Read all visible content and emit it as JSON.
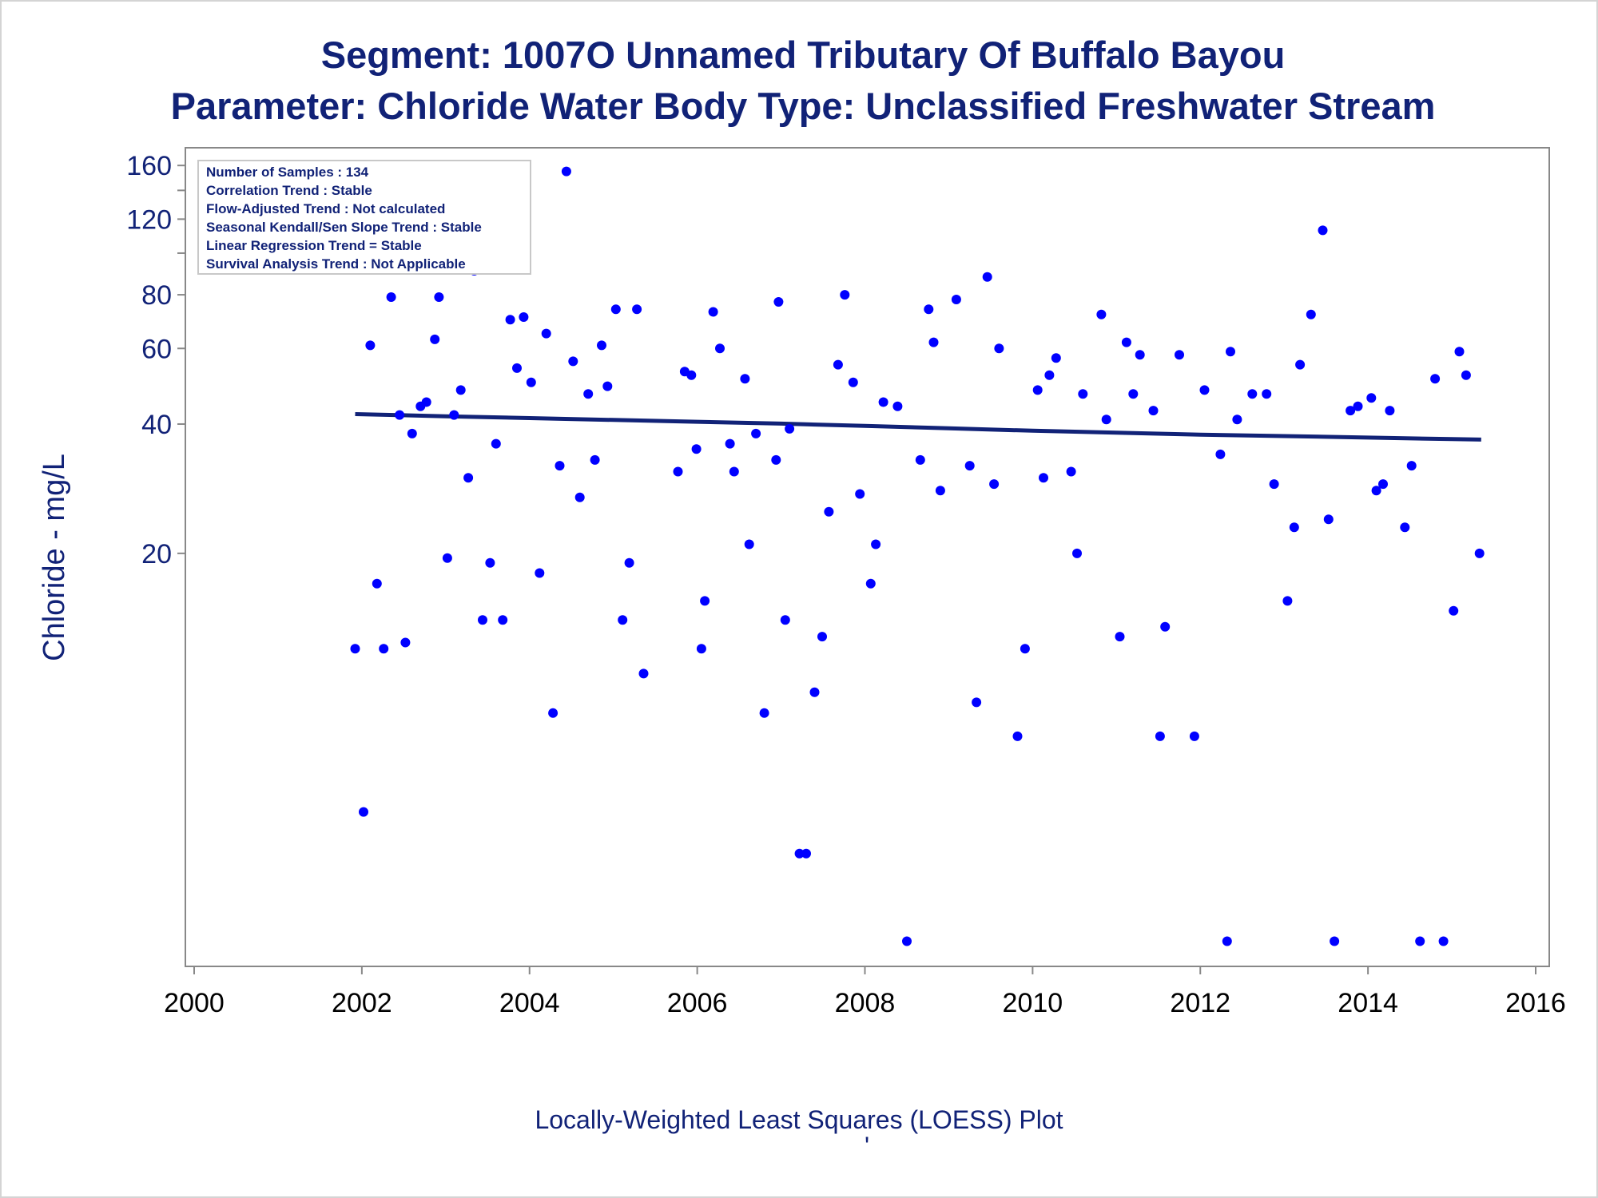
{
  "chart_data": {
    "type": "scatter",
    "title": "Segment: 1007O  Unnamed Tributary Of Buffalo Bayou",
    "subtitle": "Parameter: Chloride   Water Body Type: Unclassified Freshwater Stream",
    "ylabel": "Chloride - mg/L",
    "xlabel": "",
    "footnote": "Locally-Weighted Least Squares (LOESS) Plot",
    "footnote_mark": "'",
    "y_scale": "log",
    "xlim": [
      2000,
      2016
    ],
    "ylim": [
      2.3,
      165
    ],
    "x_ticks": [
      2000,
      2002,
      2004,
      2006,
      2008,
      2010,
      2012,
      2014,
      2016
    ],
    "y_ticks_labeled": [
      20,
      40,
      60,
      80,
      120,
      160
    ],
    "y_ticks_minor": [
      100,
      140
    ],
    "grid": false,
    "legend_box_position": "top-left",
    "stats": [
      "Number of Samples : 134",
      "Correlation Trend : Stable",
      "Flow-Adjusted Trend : Not calculated",
      "Seasonal Kendall/Sen Slope Trend : Stable",
      "Linear Regression Trend = Stable",
      "Survival Analysis Trend : Not Applicable"
    ],
    "colors": {
      "points": "#0000ff",
      "loess": "#112277",
      "text": "#112277",
      "axis": "#888888"
    },
    "loess_line": {
      "x": [
        2001.92,
        2003,
        2004,
        2005,
        2006,
        2007,
        2008,
        2009,
        2010,
        2011,
        2012,
        2013,
        2014,
        2015,
        2015.35
      ],
      "y": [
        42.2,
        41.7,
        41.3,
        40.9,
        40.5,
        40.1,
        39.6,
        39.1,
        38.6,
        38.2,
        37.8,
        37.5,
        37.2,
        36.9,
        36.8
      ]
    },
    "points": [
      {
        "x": 2001.92,
        "y": 12
      },
      {
        "x": 2002.02,
        "y": 5
      },
      {
        "x": 2002.1,
        "y": 61
      },
      {
        "x": 2002.18,
        "y": 17
      },
      {
        "x": 2002.26,
        "y": 12
      },
      {
        "x": 2002.35,
        "y": 79
      },
      {
        "x": 2002.45,
        "y": 42
      },
      {
        "x": 2002.52,
        "y": 12.4
      },
      {
        "x": 2002.6,
        "y": 38
      },
      {
        "x": 2002.7,
        "y": 44
      },
      {
        "x": 2002.77,
        "y": 45
      },
      {
        "x": 2002.87,
        "y": 63
      },
      {
        "x": 2002.92,
        "y": 79
      },
      {
        "x": 2003.02,
        "y": 19.5
      },
      {
        "x": 2003.1,
        "y": 42
      },
      {
        "x": 2003.18,
        "y": 48
      },
      {
        "x": 2003.27,
        "y": 30
      },
      {
        "x": 2003.34,
        "y": 91
      },
      {
        "x": 2003.44,
        "y": 14
      },
      {
        "x": 2003.53,
        "y": 19
      },
      {
        "x": 2003.6,
        "y": 36
      },
      {
        "x": 2003.68,
        "y": 14
      },
      {
        "x": 2003.77,
        "y": 70
      },
      {
        "x": 2003.85,
        "y": 54
      },
      {
        "x": 2003.93,
        "y": 71
      },
      {
        "x": 2004.02,
        "y": 50
      },
      {
        "x": 2004.12,
        "y": 18
      },
      {
        "x": 2004.2,
        "y": 65
      },
      {
        "x": 2004.28,
        "y": 8.5
      },
      {
        "x": 2004.36,
        "y": 32
      },
      {
        "x": 2004.44,
        "y": 155
      },
      {
        "x": 2004.52,
        "y": 56
      },
      {
        "x": 2004.6,
        "y": 27
      },
      {
        "x": 2004.7,
        "y": 47
      },
      {
        "x": 2004.78,
        "y": 33
      },
      {
        "x": 2004.86,
        "y": 61
      },
      {
        "x": 2004.93,
        "y": 49
      },
      {
        "x": 2005.03,
        "y": 74
      },
      {
        "x": 2005.11,
        "y": 14
      },
      {
        "x": 2005.19,
        "y": 19
      },
      {
        "x": 2005.28,
        "y": 74
      },
      {
        "x": 2005.36,
        "y": 10.5
      },
      {
        "x": 2005.77,
        "y": 31
      },
      {
        "x": 2005.85,
        "y": 53
      },
      {
        "x": 2005.93,
        "y": 52
      },
      {
        "x": 2005.99,
        "y": 35
      },
      {
        "x": 2006.05,
        "y": 12
      },
      {
        "x": 2006.09,
        "y": 15.5
      },
      {
        "x": 2006.19,
        "y": 73
      },
      {
        "x": 2006.27,
        "y": 60
      },
      {
        "x": 2006.39,
        "y": 36
      },
      {
        "x": 2006.44,
        "y": 31
      },
      {
        "x": 2006.57,
        "y": 51
      },
      {
        "x": 2006.62,
        "y": 21
      },
      {
        "x": 2006.7,
        "y": 38
      },
      {
        "x": 2006.8,
        "y": 8.5
      },
      {
        "x": 2006.94,
        "y": 33
      },
      {
        "x": 2006.97,
        "y": 77
      },
      {
        "x": 2007.05,
        "y": 14
      },
      {
        "x": 2007.1,
        "y": 39
      },
      {
        "x": 2007.22,
        "y": 4
      },
      {
        "x": 2007.3,
        "y": 4
      },
      {
        "x": 2007.4,
        "y": 9.5
      },
      {
        "x": 2007.49,
        "y": 12.8
      },
      {
        "x": 2007.57,
        "y": 25
      },
      {
        "x": 2007.68,
        "y": 55
      },
      {
        "x": 2007.76,
        "y": 80
      },
      {
        "x": 2007.86,
        "y": 50
      },
      {
        "x": 2007.94,
        "y": 27.5
      },
      {
        "x": 2008.07,
        "y": 17
      },
      {
        "x": 2008.13,
        "y": 21
      },
      {
        "x": 2008.22,
        "y": 45
      },
      {
        "x": 2008.39,
        "y": 44
      },
      {
        "x": 2008.5,
        "y": 2.5
      },
      {
        "x": 2008.66,
        "y": 33
      },
      {
        "x": 2008.76,
        "y": 74
      },
      {
        "x": 2008.82,
        "y": 62
      },
      {
        "x": 2008.9,
        "y": 28
      },
      {
        "x": 2009.09,
        "y": 78
      },
      {
        "x": 2009.25,
        "y": 32
      },
      {
        "x": 2009.33,
        "y": 9
      },
      {
        "x": 2009.46,
        "y": 88
      },
      {
        "x": 2009.54,
        "y": 29
      },
      {
        "x": 2009.6,
        "y": 60
      },
      {
        "x": 2009.82,
        "y": 7.5
      },
      {
        "x": 2009.91,
        "y": 12
      },
      {
        "x": 2010.06,
        "y": 48
      },
      {
        "x": 2010.13,
        "y": 30
      },
      {
        "x": 2010.2,
        "y": 52
      },
      {
        "x": 2010.28,
        "y": 57
      },
      {
        "x": 2010.46,
        "y": 31
      },
      {
        "x": 2010.53,
        "y": 20
      },
      {
        "x": 2010.6,
        "y": 47
      },
      {
        "x": 2010.82,
        "y": 72
      },
      {
        "x": 2010.88,
        "y": 41
      },
      {
        "x": 2011.04,
        "y": 12.8
      },
      {
        "x": 2011.12,
        "y": 62
      },
      {
        "x": 2011.2,
        "y": 47
      },
      {
        "x": 2011.28,
        "y": 58
      },
      {
        "x": 2011.44,
        "y": 43
      },
      {
        "x": 2011.52,
        "y": 7.5
      },
      {
        "x": 2011.58,
        "y": 13.5
      },
      {
        "x": 2011.75,
        "y": 58
      },
      {
        "x": 2011.93,
        "y": 7.5
      },
      {
        "x": 2012.05,
        "y": 48
      },
      {
        "x": 2012.24,
        "y": 34
      },
      {
        "x": 2012.32,
        "y": 2.5
      },
      {
        "x": 2012.36,
        "y": 59
      },
      {
        "x": 2012.44,
        "y": 41
      },
      {
        "x": 2012.62,
        "y": 47
      },
      {
        "x": 2012.79,
        "y": 47
      },
      {
        "x": 2012.88,
        "y": 29
      },
      {
        "x": 2013.04,
        "y": 15.5
      },
      {
        "x": 2013.12,
        "y": 23
      },
      {
        "x": 2013.19,
        "y": 55
      },
      {
        "x": 2013.32,
        "y": 72
      },
      {
        "x": 2013.46,
        "y": 113
      },
      {
        "x": 2013.53,
        "y": 24
      },
      {
        "x": 2013.6,
        "y": 2.5
      },
      {
        "x": 2013.79,
        "y": 43
      },
      {
        "x": 2013.88,
        "y": 44
      },
      {
        "x": 2014.04,
        "y": 46
      },
      {
        "x": 2014.1,
        "y": 28
      },
      {
        "x": 2014.18,
        "y": 29
      },
      {
        "x": 2014.26,
        "y": 43
      },
      {
        "x": 2014.44,
        "y": 23
      },
      {
        "x": 2014.52,
        "y": 32
      },
      {
        "x": 2014.62,
        "y": 2.5
      },
      {
        "x": 2014.8,
        "y": 51
      },
      {
        "x": 2014.9,
        "y": 2.5
      },
      {
        "x": 2015.02,
        "y": 14.7
      },
      {
        "x": 2015.09,
        "y": 59
      },
      {
        "x": 2015.17,
        "y": 52
      },
      {
        "x": 2015.33,
        "y": 20
      }
    ]
  }
}
